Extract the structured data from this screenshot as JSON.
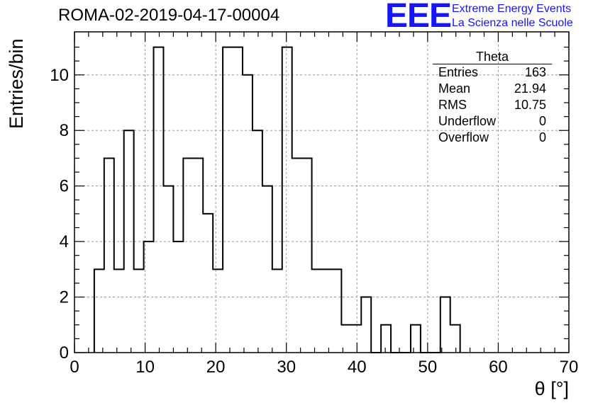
{
  "header": {
    "title": "ROMA-02-2019-04-17-00004"
  },
  "logo": {
    "mark": "EEE",
    "line1": "Extreme Energy Events",
    "line2": "La Scienza nelle Scuole"
  },
  "stats_box": {
    "title": "Theta",
    "rows": [
      {
        "label": "Entries",
        "value": "163"
      },
      {
        "label": "Mean",
        "value": "21.94"
      },
      {
        "label": "RMS",
        "value": "10.75"
      },
      {
        "label": "Underflow",
        "value": "0"
      },
      {
        "label": "Overflow",
        "value": "0"
      }
    ]
  },
  "colors": {
    "logo": "#1515ff",
    "grid": "#9a9a9a",
    "line": "#000000"
  },
  "chart_data": {
    "type": "bar",
    "style": "step-histogram",
    "title": "ROMA-02-2019-04-17-00004",
    "xlabel": "θ [°]",
    "ylabel": "Entries/bin",
    "xlim": [
      0,
      70
    ],
    "ylim": [
      0,
      11.55
    ],
    "grid": true,
    "x_ticks": [
      "0",
      "10",
      "20",
      "30",
      "40",
      "50",
      "60",
      "70"
    ],
    "y_ticks": [
      "0",
      "2",
      "4",
      "6",
      "8",
      "10"
    ],
    "bin_width": 1.4,
    "bin_start": 2.8,
    "values": [
      3,
      7,
      3,
      8,
      3,
      4,
      11,
      6,
      4,
      7,
      7,
      5,
      3,
      11,
      11,
      10,
      8,
      6,
      3,
      11,
      7,
      7,
      3,
      3,
      3,
      1,
      1,
      2,
      0,
      1,
      0,
      0,
      1,
      0,
      0,
      2,
      1
    ]
  }
}
